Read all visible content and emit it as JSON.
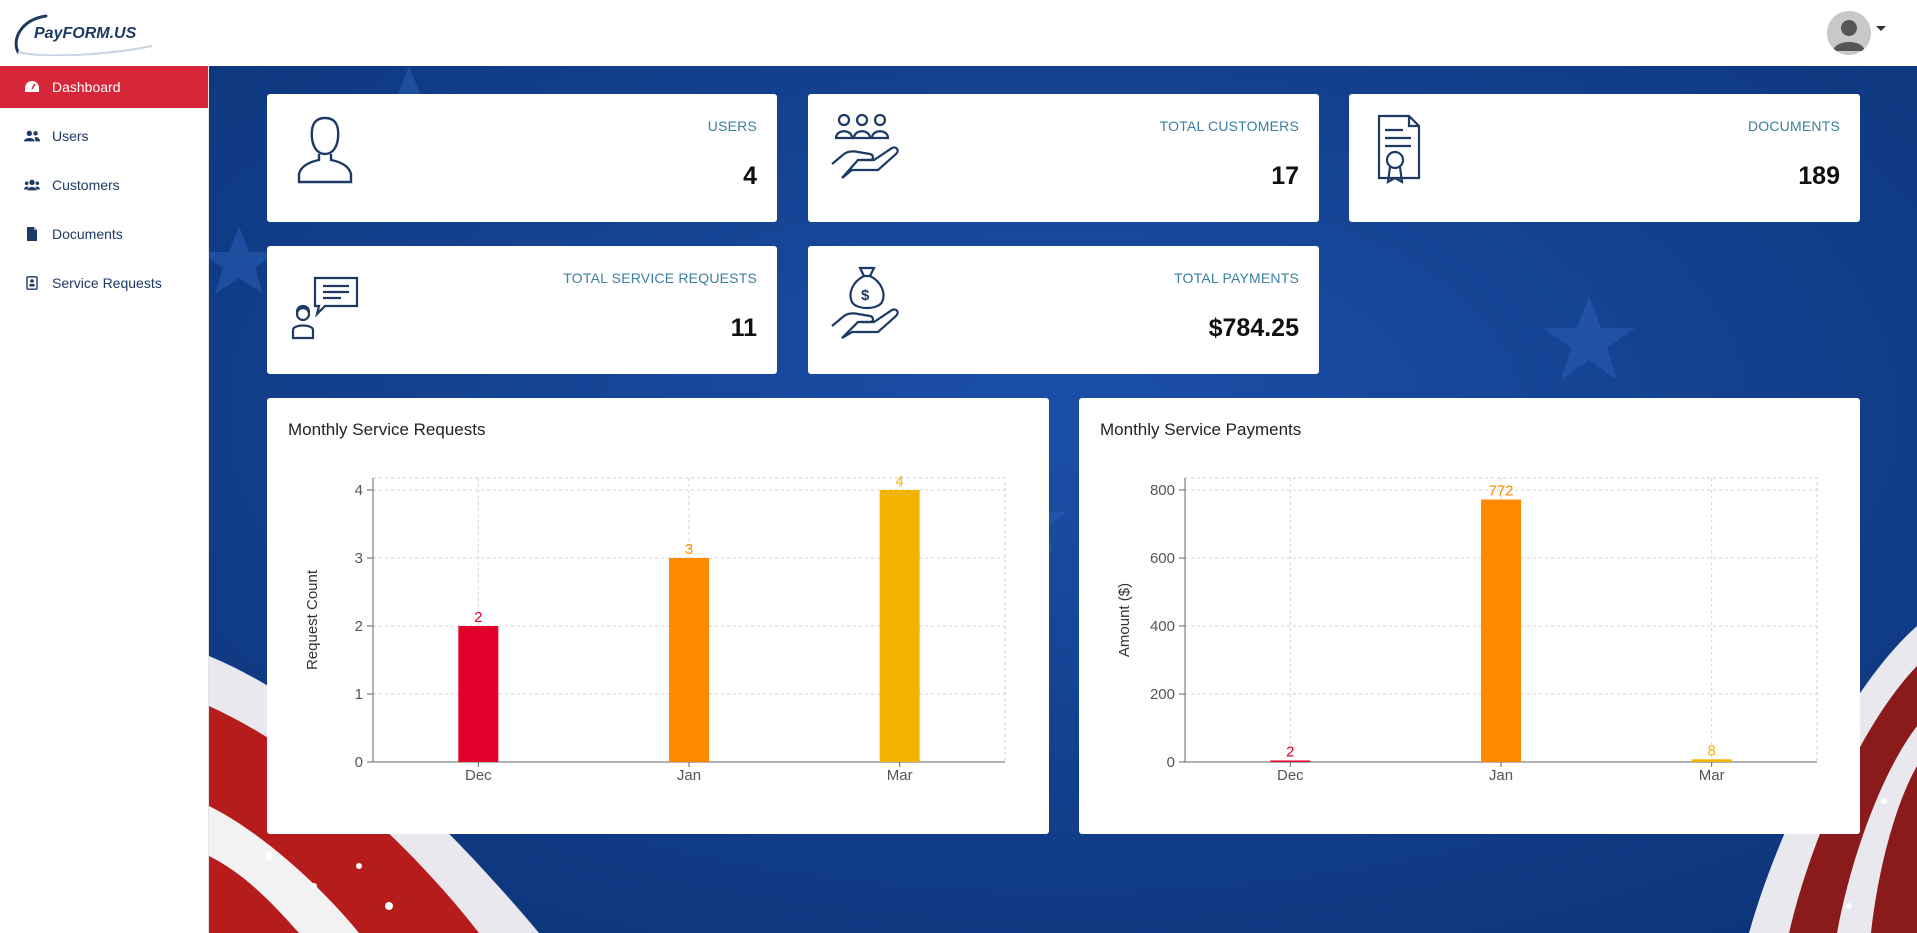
{
  "header": {
    "logo_text": "PayFORM.US",
    "avatar_icon": "user-avatar-icon"
  },
  "sidebar": {
    "items": [
      {
        "label": "Dashboard",
        "icon": "dashboard-gauge-icon",
        "active": true
      },
      {
        "label": "Users",
        "icon": "users-icon",
        "active": false
      },
      {
        "label": "Customers",
        "icon": "customers-icon",
        "active": false
      },
      {
        "label": "Documents",
        "icon": "document-icon",
        "active": false
      },
      {
        "label": "Service Requests",
        "icon": "service-request-icon",
        "active": false
      }
    ]
  },
  "stats": {
    "users": {
      "label": "USERS",
      "value": "4",
      "icon": "user-outline-icon"
    },
    "customers": {
      "label": "TOTAL CUSTOMERS",
      "value": "17",
      "icon": "customers-hand-icon"
    },
    "documents": {
      "label": "DOCUMENTS",
      "value": "189",
      "icon": "certificate-document-icon"
    },
    "service_requests": {
      "label": "TOTAL SERVICE REQUESTS",
      "value": "11",
      "icon": "support-chat-icon"
    },
    "payments": {
      "label": "TOTAL PAYMENTS",
      "value": "$784.25",
      "icon": "money-bag-hand-icon"
    }
  },
  "colors": {
    "accent_red": "#d6273a",
    "label_blue": "#3a7ea2",
    "bar_red": "#e3002b",
    "bar_orange": "#ff8a00",
    "bar_yellow": "#f2b400"
  },
  "chart_data": [
    {
      "type": "bar",
      "title": "Monthly Service Requests",
      "categories": [
        "Dec",
        "Jan",
        "Mar"
      ],
      "values": [
        2,
        3,
        4
      ],
      "data_labels": [
        "2",
        "3",
        "4"
      ],
      "bar_colors": [
        "#e3002b",
        "#ff8a00",
        "#f2b400"
      ],
      "xlabel": "",
      "ylabel": "Request Count",
      "ylim": [
        0,
        4
      ],
      "yticks": [
        0,
        1,
        2,
        3,
        4
      ],
      "grid": true,
      "legend": "none"
    },
    {
      "type": "bar",
      "title": "Monthly Service Payments",
      "categories": [
        "Dec",
        "Jan",
        "Mar"
      ],
      "values": [
        2,
        772,
        8
      ],
      "data_labels": [
        "2",
        "772",
        "8"
      ],
      "bar_colors": [
        "#e3002b",
        "#ff8a00",
        "#f2b400"
      ],
      "xlabel": "",
      "ylabel": "Amount ($)",
      "ylim": [
        0,
        800
      ],
      "yticks": [
        0,
        200,
        400,
        600,
        800
      ],
      "grid": true,
      "legend": "none"
    }
  ]
}
